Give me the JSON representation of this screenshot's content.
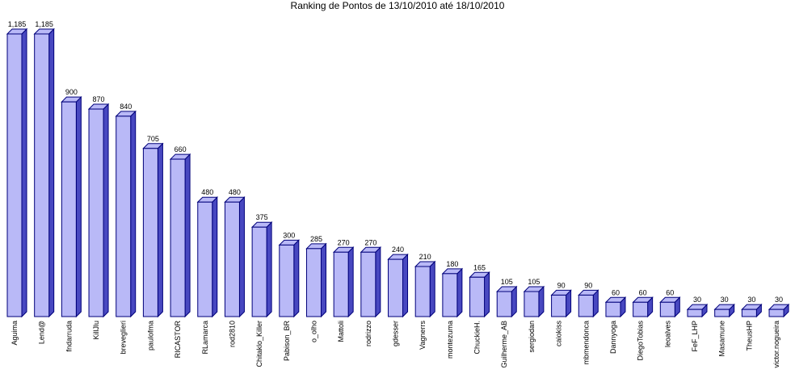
{
  "chart_data": {
    "type": "bar3d",
    "title": "Ranking de Pontos de 13/10/2010 até 18/10/2010",
    "categories": [
      "Aguima",
      "Lend@",
      "fndarruda",
      "KillJlu",
      "breveglieri",
      "paulofma",
      "RICASTOR",
      "RLamarca",
      "rod2810",
      "Chitaklo_Killer",
      "Pabison_BR",
      "o_olho",
      "Mattoli",
      "rodrizzo",
      "gdesser",
      "Vagnerrs",
      "montezuma",
      "ChuckieH.",
      "Guilherme_AB",
      "sergiodan",
      "caiokiss",
      "mbmendonca",
      "Dannyoga",
      "DiegoTobias",
      "leoalves",
      "FeF_LHP",
      "Masamune",
      "TheusHP",
      "victor.nogueira"
    ],
    "values": [
      1185,
      1185,
      900,
      870,
      840,
      705,
      660,
      480,
      480,
      375,
      300,
      285,
      270,
      270,
      240,
      210,
      180,
      165,
      105,
      105,
      90,
      90,
      60,
      60,
      60,
      30,
      30,
      30,
      30
    ],
    "value_labels": [
      "1,185",
      "1,185",
      "900",
      "870",
      "840",
      "705",
      "660",
      "480",
      "480",
      "375",
      "300",
      "285",
      "270",
      "270",
      "240",
      "210",
      "180",
      "165",
      "105",
      "105",
      "90",
      "90",
      "60",
      "60",
      "60",
      "30",
      "30",
      "30",
      "30"
    ],
    "color": "#b9b9f7",
    "side_color": "#4848c0",
    "edge_color": "#00007a"
  }
}
